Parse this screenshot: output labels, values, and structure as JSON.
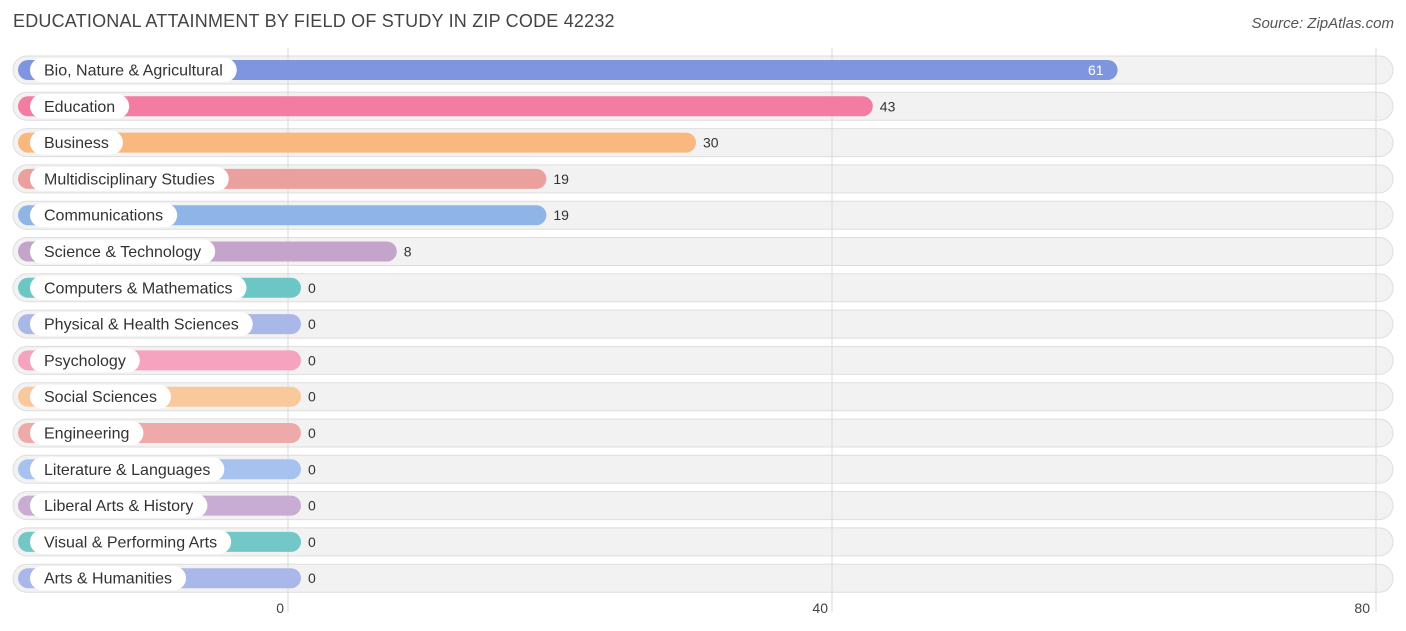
{
  "header": {
    "title": "EDUCATIONAL ATTAINMENT BY FIELD OF STUDY IN ZIP CODE 42232",
    "source": "Source: ZipAtlas.com"
  },
  "chart_data": {
    "type": "bar",
    "orientation": "horizontal",
    "title": "EDUCATIONAL ATTAINMENT BY FIELD OF STUDY IN ZIP CODE 42232",
    "categories": [
      "Bio, Nature & Agricultural",
      "Education",
      "Business",
      "Multidisciplinary Studies",
      "Communications",
      "Science & Technology",
      "Computers & Mathematics",
      "Physical & Health Sciences",
      "Psychology",
      "Social Sciences",
      "Engineering",
      "Literature & Languages",
      "Liberal Arts & History",
      "Visual & Performing Arts",
      "Arts & Humanities"
    ],
    "values": [
      61,
      43,
      30,
      19,
      19,
      8,
      0,
      0,
      0,
      0,
      0,
      0,
      0,
      0,
      0
    ],
    "colors": [
      "#7f96de",
      "#f47ba2",
      "#f8b87e",
      "#eaa19e",
      "#8fb5e6",
      "#c5a4cc",
      "#6dc6c6",
      "#aab8e8",
      "#f6a3bf",
      "#f9c89c",
      "#eeaaa8",
      "#a7c2ee",
      "#c9acd3",
      "#73c7c7",
      "#aab7ea"
    ],
    "xlim": [
      0,
      80
    ],
    "xticks": [
      0,
      40,
      80
    ],
    "grid": true
  }
}
